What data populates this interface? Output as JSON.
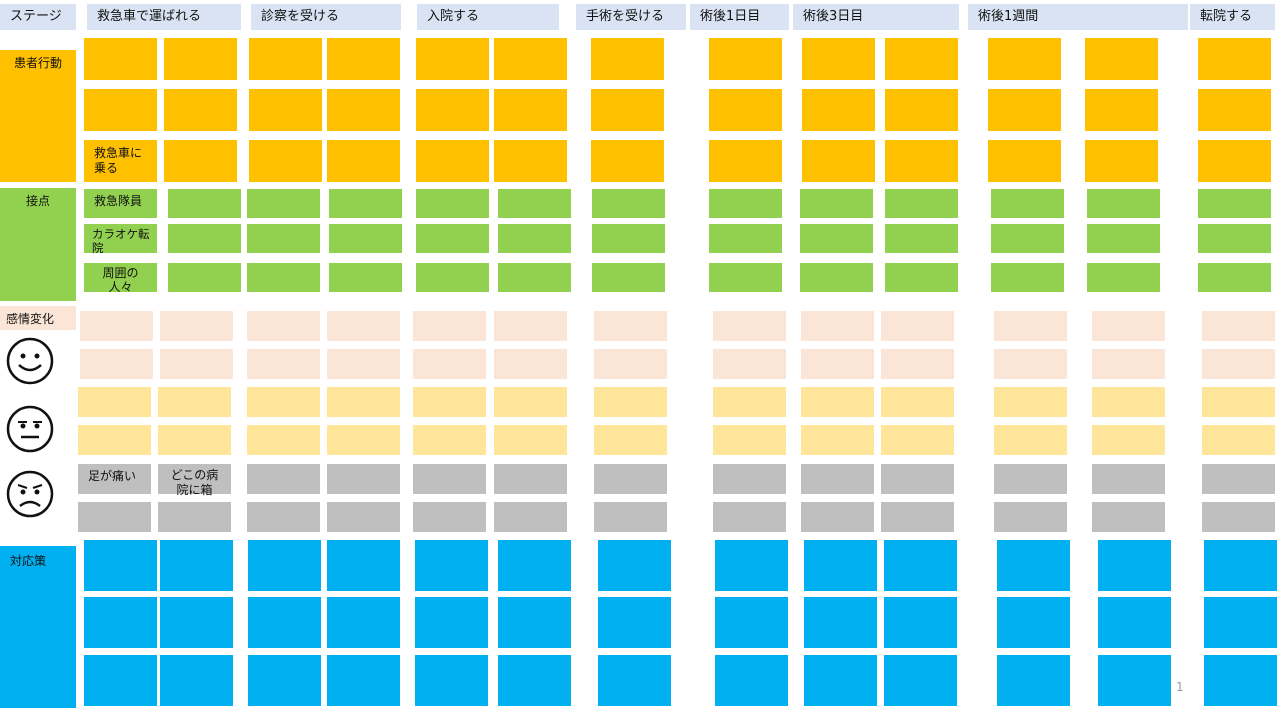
{
  "colors": {
    "stage_header": "#dae3f3",
    "action": "#ffc000",
    "touchpoint": "#92d050",
    "emotion_label": "#fbe5d6",
    "emotion_positive": "#fbe5d6",
    "emotion_neutral": "#fee599",
    "emotion_negative": "#bfbfbf",
    "countermeasure": "#00b0f0"
  },
  "stage_label": "ステージ",
  "stages": [
    "救急車で運ばれる",
    "診察を受ける",
    "入院する",
    "手術を受ける",
    "術後1日目",
    "術後3日目",
    "術後1週間",
    "転院する"
  ],
  "rows": {
    "action": "患者行動",
    "touchpoint": "接点",
    "emotion": "感情変化",
    "countermeasure": "対応策"
  },
  "faces": [
    {
      "icon": "smile-face-icon",
      "mood": "positive"
    },
    {
      "icon": "neutral-face-icon",
      "mood": "neutral"
    },
    {
      "icon": "sad-face-icon",
      "mood": "negative"
    }
  ],
  "notes": {
    "ambulance": "救急車に乗る",
    "paramedic": "救急隊員",
    "karaoke": "カラオケ転院",
    "bystanders": "周囲の人々",
    "leg_pain": "足が痛い",
    "which_hospital": "どこの病院に箱"
  },
  "page_number": "1"
}
